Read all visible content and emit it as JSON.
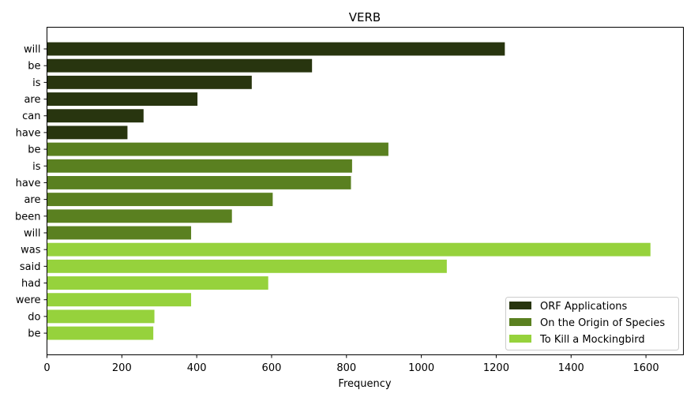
{
  "chart_data": {
    "type": "bar",
    "orientation": "horizontal",
    "title": "VERB",
    "xlabel": "Frequency",
    "ylabel": "",
    "xlim": [
      0,
      1700
    ],
    "xticks": [
      0,
      200,
      400,
      600,
      800,
      1000,
      1200,
      1400,
      1600
    ],
    "grid": false,
    "legend_position": "bottom-right",
    "series": [
      {
        "name": "ORF Applications",
        "color": "#28350f",
        "categories": [
          "will",
          "be",
          "is",
          "are",
          "can",
          "have"
        ],
        "values": [
          1223,
          708,
          547,
          402,
          258,
          215
        ]
      },
      {
        "name": "On the Origin of Species",
        "color": "#5a8020",
        "categories": [
          "be",
          "is",
          "have",
          "are",
          "been",
          "will"
        ],
        "values": [
          912,
          815,
          812,
          603,
          494,
          385
        ]
      },
      {
        "name": "To Kill a Mockingbird",
        "color": "#96d23c",
        "categories": [
          "was",
          "said",
          "had",
          "were",
          "do",
          "be"
        ],
        "values": [
          1612,
          1068,
          591,
          385,
          287,
          284
        ]
      }
    ]
  }
}
